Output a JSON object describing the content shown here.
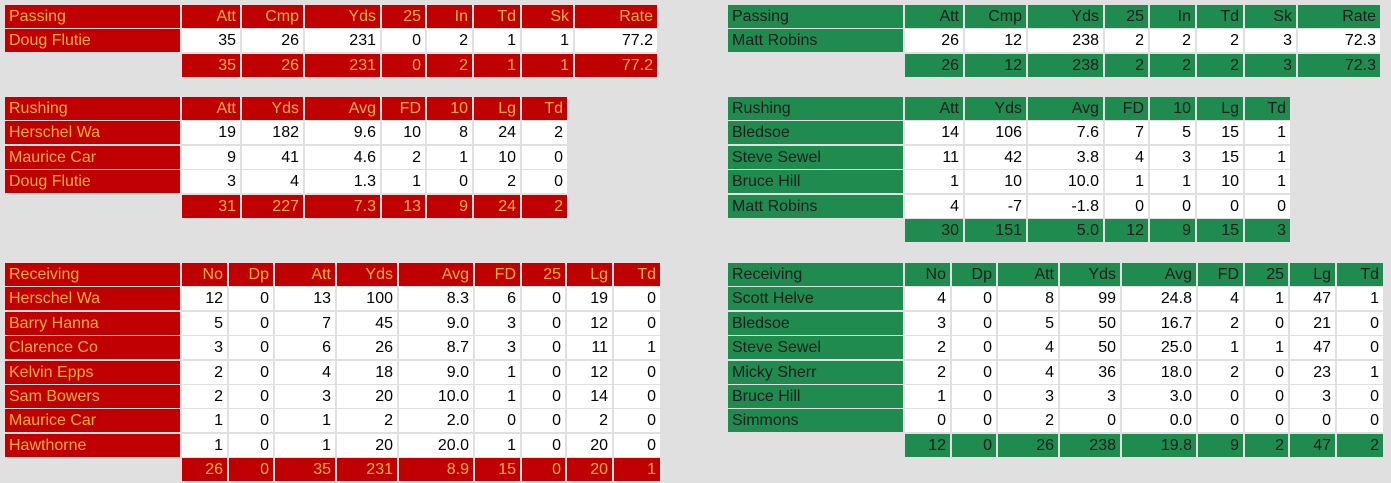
{
  "teams": [
    {
      "sections": [
        {
          "title": "Passing",
          "columns": [
            "Att",
            "Cmp",
            "Yds",
            "25",
            "In",
            "Td",
            "Sk",
            "Rate"
          ],
          "rows": [
            {
              "name": "Doug Flutie",
              "cells": [
                "35",
                "26",
                "231",
                "0",
                "2",
                "1",
                "1",
                "77.2"
              ]
            }
          ],
          "totals": [
            "35",
            "26",
            "231",
            "0",
            "2",
            "1",
            "1",
            "77.2"
          ]
        },
        {
          "title": "Rushing",
          "columns": [
            "Att",
            "Yds",
            "Avg",
            "FD",
            "10",
            "Lg",
            "Td"
          ],
          "rows": [
            {
              "name": "Herschel Wa",
              "cells": [
                "19",
                "182",
                "9.6",
                "10",
                "8",
                "24",
                "2"
              ]
            },
            {
              "name": "Maurice Car",
              "cells": [
                "9",
                "41",
                "4.6",
                "2",
                "1",
                "10",
                "0"
              ]
            },
            {
              "name": "Doug Flutie",
              "cells": [
                "3",
                "4",
                "1.3",
                "1",
                "0",
                "2",
                "0"
              ]
            }
          ],
          "totals": [
            "31",
            "227",
            "7.3",
            "13",
            "9",
            "24",
            "2"
          ]
        },
        {
          "title": "Receiving",
          "columns": [
            "No",
            "Dp",
            "Att",
            "Yds",
            "Avg",
            "FD",
            "25",
            "Lg",
            "Td"
          ],
          "rows": [
            {
              "name": "Herschel Wa",
              "cells": [
                "12",
                "0",
                "13",
                "100",
                "8.3",
                "6",
                "0",
                "19",
                "0"
              ]
            },
            {
              "name": "Barry Hanna",
              "cells": [
                "5",
                "0",
                "7",
                "45",
                "9.0",
                "3",
                "0",
                "12",
                "0"
              ]
            },
            {
              "name": "Clarence Co",
              "cells": [
                "3",
                "0",
                "6",
                "26",
                "8.7",
                "3",
                "0",
                "11",
                "1"
              ]
            },
            {
              "name": "Kelvin Epps",
              "cells": [
                "2",
                "0",
                "4",
                "18",
                "9.0",
                "1",
                "0",
                "12",
                "0"
              ]
            },
            {
              "name": "Sam Bowers",
              "cells": [
                "2",
                "0",
                "3",
                "20",
                "10.0",
                "1",
                "0",
                "14",
                "0"
              ]
            },
            {
              "name": "Maurice Car",
              "cells": [
                "1",
                "0",
                "1",
                "2",
                "2.0",
                "0",
                "0",
                "2",
                "0"
              ]
            },
            {
              "name": "Hawthorne",
              "cells": [
                "1",
                "0",
                "1",
                "20",
                "20.0",
                "1",
                "0",
                "20",
                "0"
              ]
            }
          ],
          "totals": [
            "26",
            "0",
            "35",
            "231",
            "8.9",
            "15",
            "0",
            "20",
            "1"
          ]
        }
      ]
    },
    {
      "sections": [
        {
          "title": "Passing",
          "columns": [
            "Att",
            "Cmp",
            "Yds",
            "25",
            "In",
            "Td",
            "Sk",
            "Rate"
          ],
          "rows": [
            {
              "name": "Matt Robins",
              "cells": [
                "26",
                "12",
                "238",
                "2",
                "2",
                "2",
                "3",
                "72.3"
              ]
            }
          ],
          "totals": [
            "26",
            "12",
            "238",
            "2",
            "2",
            "2",
            "3",
            "72.3"
          ]
        },
        {
          "title": "Rushing",
          "columns": [
            "Att",
            "Yds",
            "Avg",
            "FD",
            "10",
            "Lg",
            "Td"
          ],
          "rows": [
            {
              "name": "Bledsoe",
              "cells": [
                "14",
                "106",
                "7.6",
                "7",
                "5",
                "15",
                "1"
              ]
            },
            {
              "name": "Steve Sewel",
              "cells": [
                "11",
                "42",
                "3.8",
                "4",
                "3",
                "15",
                "1"
              ]
            },
            {
              "name": "Bruce Hill",
              "cells": [
                "1",
                "10",
                "10.0",
                "1",
                "1",
                "10",
                "1"
              ]
            },
            {
              "name": "Matt Robins",
              "cells": [
                "4",
                "-7",
                "-1.8",
                "0",
                "0",
                "0",
                "0"
              ]
            }
          ],
          "totals": [
            "30",
            "151",
            "5.0",
            "12",
            "9",
            "15",
            "3"
          ]
        },
        {
          "title": "Receiving",
          "columns": [
            "No",
            "Dp",
            "Att",
            "Yds",
            "Avg",
            "FD",
            "25",
            "Lg",
            "Td"
          ],
          "rows": [
            {
              "name": "Scott Helve",
              "cells": [
                "4",
                "0",
                "8",
                "99",
                "24.8",
                "4",
                "1",
                "47",
                "1"
              ]
            },
            {
              "name": "Bledsoe",
              "cells": [
                "3",
                "0",
                "5",
                "50",
                "16.7",
                "2",
                "0",
                "21",
                "0"
              ]
            },
            {
              "name": "Steve Sewel",
              "cells": [
                "2",
                "0",
                "4",
                "50",
                "25.0",
                "1",
                "1",
                "47",
                "0"
              ]
            },
            {
              "name": "Micky Sherr",
              "cells": [
                "2",
                "0",
                "4",
                "36",
                "18.0",
                "2",
                "0",
                "23",
                "1"
              ]
            },
            {
              "name": "Bruce Hill",
              "cells": [
                "1",
                "0",
                "3",
                "3",
                "3.0",
                "0",
                "0",
                "3",
                "0"
              ]
            },
            {
              "name": "Simmons",
              "cells": [
                "0",
                "0",
                "2",
                "0",
                "0.0",
                "0",
                "0",
                "0",
                "0"
              ]
            }
          ],
          "totals": [
            "12",
            "0",
            "26",
            "238",
            "19.8",
            "9",
            "2",
            "47",
            "2"
          ]
        }
      ]
    }
  ]
}
